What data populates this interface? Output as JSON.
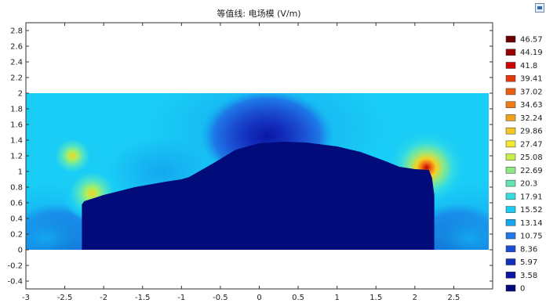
{
  "chart_data": {
    "type": "heatmap",
    "title": "等值线: 电场模 (V/m)",
    "xlim": [
      -3,
      3
    ],
    "ylim": [
      -0.5,
      2.9
    ],
    "x_ticks": [
      "-3",
      "-2.5",
      "-2",
      "-1.5",
      "-1",
      "-0.5",
      "0",
      "0.5",
      "1",
      "1.5",
      "2",
      "2.5"
    ],
    "y_ticks": [
      "2.8",
      "2.6",
      "2.4",
      "2.2",
      "2",
      "1.8",
      "1.6",
      "1.4",
      "1.2",
      "1",
      "0.8",
      "0.6",
      "0.4",
      "0.2",
      "0",
      "-0.2",
      "-0.4"
    ],
    "y_tick_values": [
      2.8,
      2.6,
      2.4,
      2.2,
      2,
      1.8,
      1.6,
      1.4,
      1.2,
      1,
      0.8,
      0.6,
      0.4,
      0.2,
      0,
      -0.2,
      -0.4
    ],
    "x_tick_values": [
      -3,
      -2.5,
      -2,
      -1.5,
      -1,
      -0.5,
      0,
      0.5,
      1,
      1.5,
      2,
      2.5
    ],
    "domain": {
      "x": [
        -3,
        2.95
      ],
      "y": [
        0,
        2
      ]
    },
    "hot_spots": [
      {
        "x": 2.15,
        "y": 1.05,
        "level": 46.57
      },
      {
        "x": -2.15,
        "y": 0.72,
        "level": 20.3
      },
      {
        "x": -2.4,
        "y": 1.2,
        "level": 15.52
      }
    ],
    "colorbar": {
      "labels": [
        "46.57",
        "44.19",
        "41.8",
        "39.41",
        "37.02",
        "34.63",
        "32.24",
        "29.86",
        "27.47",
        "25.08",
        "22.69",
        "20.3",
        "17.91",
        "15.52",
        "13.14",
        "10.75",
        "8.36",
        "5.97",
        "3.58",
        "0"
      ],
      "colors": [
        "#6b0000",
        "#9b0000",
        "#d00000",
        "#e23a0d",
        "#ec5e12",
        "#f07c18",
        "#f2a11e",
        "#f4c725",
        "#f2ea2e",
        "#c8ef4a",
        "#8fe884",
        "#62e3b0",
        "#36dde0",
        "#19cdf6",
        "#14a7ef",
        "#1d79e8",
        "#1b4fd2",
        "#1330bd",
        "#0a17a6",
        "#020b7a"
      ]
    },
    "grid": false
  }
}
